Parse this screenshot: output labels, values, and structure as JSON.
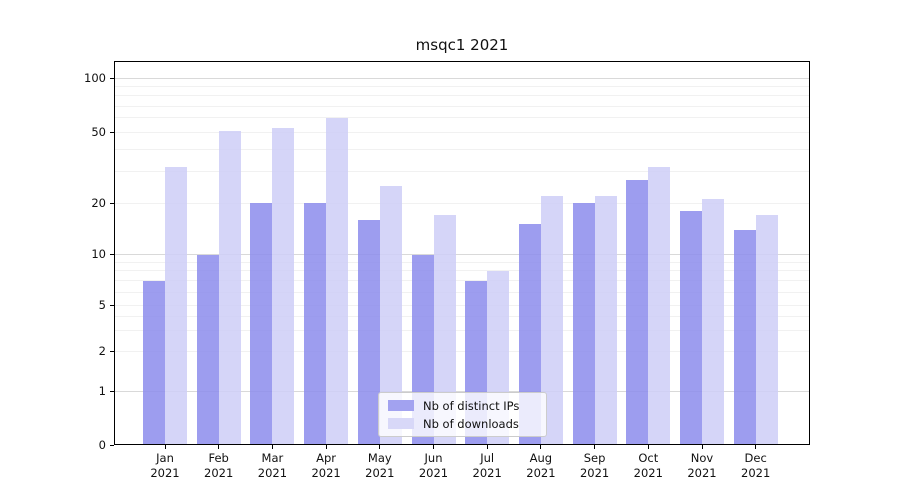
{
  "title": "msqc1 2021",
  "chart_data": {
    "type": "bar",
    "title": "msqc1 2021",
    "categories": [
      "Jan 2021",
      "Feb 2021",
      "Mar 2021",
      "Apr 2021",
      "May 2021",
      "Jun 2021",
      "Jul 2021",
      "Aug 2021",
      "Sep 2021",
      "Oct 2021",
      "Nov 2021",
      "Dec 2021"
    ],
    "series": [
      {
        "name": "Nb of distinct IPs",
        "color": "rgba(140,140,236,0.85)",
        "legend_color": "#a2a2f0",
        "values": [
          7,
          10,
          20,
          20,
          16,
          10,
          7,
          15,
          20,
          27,
          18,
          14
        ]
      },
      {
        "name": "Nb of downloads",
        "color": "rgba(206,206,247,0.85)",
        "legend_color": "#d8d8f8",
        "values": [
          32,
          51,
          53,
          60,
          25,
          17,
          8,
          22,
          22,
          32,
          21,
          17
        ]
      }
    ],
    "xlabel": "",
    "ylabel": "",
    "yscale": "symlog",
    "ylim": [
      0,
      125
    ],
    "yticks": [
      100,
      50,
      20,
      10,
      5,
      2,
      1,
      0
    ],
    "minor_gridlines": [
      2,
      3,
      4,
      5,
      6,
      7,
      8,
      9,
      20,
      30,
      40,
      50,
      60,
      70,
      80,
      90
    ],
    "major_gridlines": [
      1,
      10,
      100
    ],
    "grid": true,
    "legend_position": "lower center inside"
  },
  "colors": {
    "grid_minor": "#f1f1f1",
    "grid_major": "#d9d9d9",
    "spine": "#000000",
    "background": "#ffffff"
  }
}
